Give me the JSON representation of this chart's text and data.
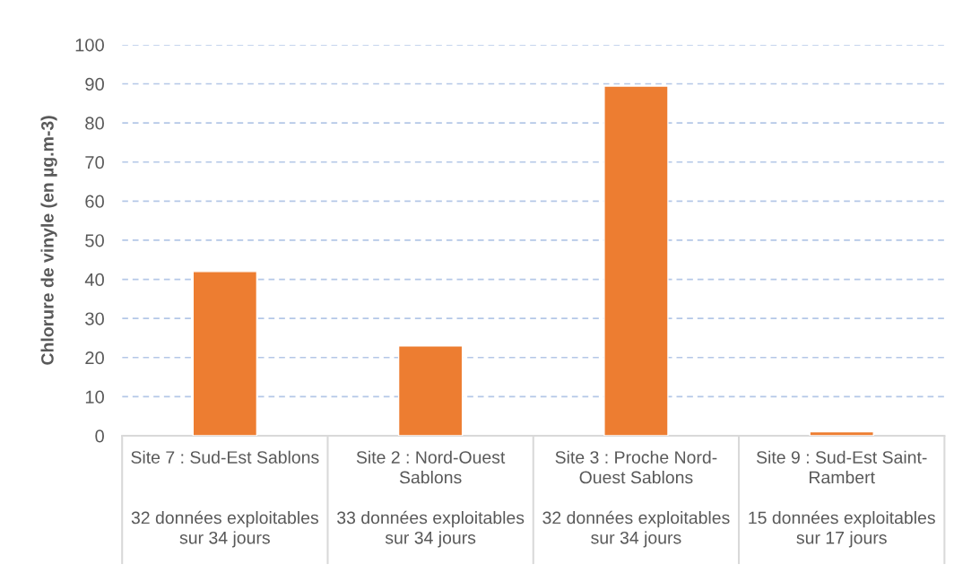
{
  "chart_data": {
    "type": "bar",
    "ylabel": "Chlorure de vinyle (en µg.m-3)",
    "categories": [
      "Site 7 : Sud-Est Sablons\n\n\n32 données exploitables\nsur 34 jours",
      "Site 2 : Nord-Ouest\nSablons\n\n33 données exploitables\nsur 34 jours",
      "Site 3 : Proche Nord-\nOuest Sablons\n\n32 données exploitables\nsur 34 jours",
      "Site 9 : Sud-Est Saint-\nRambert\n\n15 données exploitables\nsur 17 jours"
    ],
    "values": [
      42,
      23,
      89.4,
      1
    ],
    "color": "#ed7d31",
    "ylim": [
      0,
      100
    ],
    "yticks": [
      0,
      10,
      20,
      30,
      40,
      50,
      60,
      70,
      80,
      90,
      100
    ],
    "grid": "y"
  }
}
